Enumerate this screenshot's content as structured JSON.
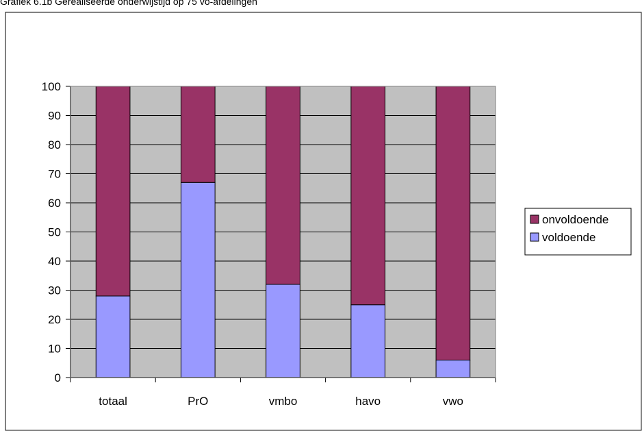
{
  "caption": "Grafiek 6.1b Gerealiseerde onderwijstijd op 75 vo-afdelingen",
  "chart_data": {
    "type": "bar",
    "stacked": true,
    "categories": [
      "totaal",
      "PrO",
      "vmbo",
      "havo",
      "vwo"
    ],
    "series": [
      {
        "name": "voldoende",
        "color": "#9999ff",
        "values": [
          28,
          67,
          32,
          25,
          6
        ]
      },
      {
        "name": "onvoldoende",
        "color": "#993366",
        "values": [
          72,
          33,
          68,
          75,
          94
        ]
      }
    ],
    "legend": [
      {
        "name": "onvoldoende",
        "color": "#993366"
      },
      {
        "name": "voldoende",
        "color": "#9999ff"
      }
    ],
    "ylim": [
      0,
      100
    ],
    "yticks": [
      0,
      10,
      20,
      30,
      40,
      50,
      60,
      70,
      80,
      90,
      100
    ],
    "grid": true,
    "plot_background": "#c0c0c0",
    "legend_position": "right"
  }
}
